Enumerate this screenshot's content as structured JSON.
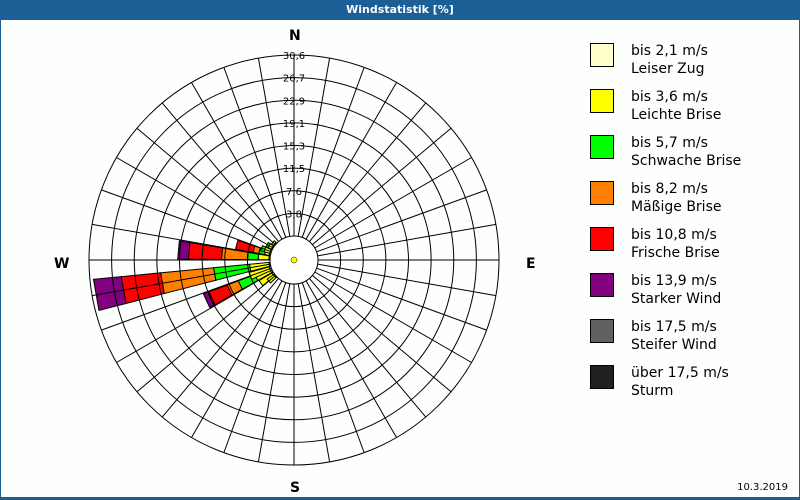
{
  "title": "Windstatistik [%]",
  "date": "10.3.2019",
  "compass": {
    "n": "N",
    "e": "E",
    "s": "S",
    "w": "W"
  },
  "legend": [
    {
      "range": "bis 2,1 m/s",
      "name": "Leiser Zug",
      "color": "#ffffcc"
    },
    {
      "range": "bis 3,6 m/s",
      "name": "Leichte Brise",
      "color": "#ffff00"
    },
    {
      "range": "bis 5,7 m/s",
      "name": "Schwache Brise",
      "color": "#00ff00"
    },
    {
      "range": "bis 8,2 m/s",
      "name": "Mäßige Brise",
      "color": "#ff8000"
    },
    {
      "range": "bis 10,8 m/s",
      "name": "Frische Brise",
      "color": "#ff0000"
    },
    {
      "range": "bis 13,9 m/s",
      "name": "Starker Wind",
      "color": "#800080"
    },
    {
      "range": "bis 17,5 m/s",
      "name": "Steifer Wind",
      "color": "#606060"
    },
    {
      "range": "über 17,5 m/s",
      "name": "Sturm",
      "color": "#202020"
    }
  ],
  "chart_data": {
    "type": "wind-rose",
    "title": "Windstatistik [%]",
    "radial_ticks": [
      "3,8",
      "7,6",
      "11,5",
      "15,3",
      "19,1",
      "22,9",
      "26,7",
      "30,6"
    ],
    "radial_max": 30.6,
    "sectors_deg": 10,
    "series": [
      {
        "direction": 260,
        "cumulative": [
          0.2,
          3.5,
          9.6,
          18.6,
          25.3,
          30.0
        ]
      },
      {
        "direction": 275,
        "cumulative": [
          0.2,
          2.0,
          3.8,
          8.2,
          13.8,
          15.6
        ]
      },
      {
        "direction": 245,
        "cumulative": [
          0.3,
          3.0,
          6.0,
          8.0,
          11.3,
          12.3
        ]
      },
      {
        "direction": 285,
        "cumulative": [
          0.2,
          1.0,
          2.0,
          3.0,
          6.0,
          6.0
        ]
      },
      {
        "direction": 250,
        "cumulative": [
          0.3,
          3.8,
          3.8,
          3.8,
          3.8,
          3.8
        ]
      },
      {
        "direction": 235,
        "cumulative": [
          0.3,
          2.8,
          2.8,
          2.8,
          2.8,
          2.8
        ]
      },
      {
        "direction": 290,
        "cumulative": [
          0.2,
          1.2,
          1.8,
          1.8,
          1.8,
          1.8
        ]
      },
      {
        "direction": 300,
        "cumulative": [
          0.2,
          0.8,
          1.2,
          1.2,
          1.2,
          1.2
        ]
      },
      {
        "direction": 230,
        "cumulative": [
          0.2,
          1.5,
          1.5,
          1.5,
          1.5,
          1.5
        ]
      },
      {
        "direction": 310,
        "cumulative": [
          0.2,
          0.6,
          0.6,
          0.6,
          0.6,
          0.6
        ]
      }
    ],
    "legend": [
      "bis 2,1 m/s",
      "bis 3,6 m/s",
      "bis 5,7 m/s",
      "bis 8,2 m/s",
      "bis 10,8 m/s",
      "bis 13,9 m/s",
      "bis 17,5 m/s",
      "über 17,5 m/s"
    ],
    "legend_position": "right"
  }
}
